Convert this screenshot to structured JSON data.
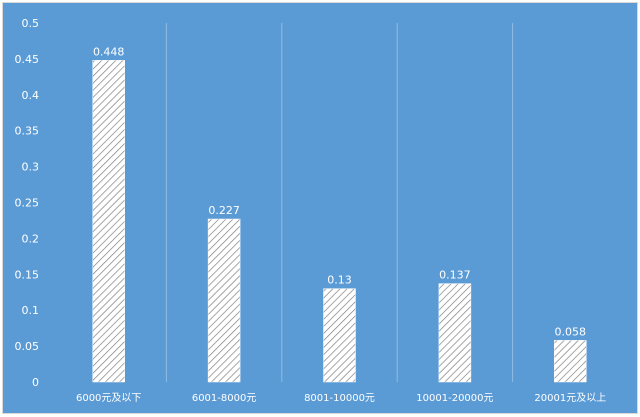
{
  "chart_data": {
    "type": "bar",
    "categories": [
      "6000元及以下",
      "6001-8000元",
      "8001-10000元",
      "10001-20000元",
      "20001元及以上"
    ],
    "series": [
      {
        "values": [
          0.448,
          0.227,
          0.13,
          0.137,
          0.058
        ]
      }
    ],
    "value_labels": [
      "0.448",
      "0.227",
      "0.13",
      "0.137",
      "0.058"
    ],
    "y_ticks": [
      "0",
      "0.05",
      "0.1",
      "0.15",
      "0.2",
      "0.25",
      "0.3",
      "0.35",
      "0.4",
      "0.45",
      "0.5"
    ],
    "ylim": [
      0,
      0.5
    ],
    "title": "",
    "xlabel": "",
    "ylabel": "",
    "grid": "vertical category separators",
    "legend": "none",
    "bar_fill": "diagonal-hatch",
    "colors": {
      "background": "#5b9bd5",
      "bar_fill": "#ffffff",
      "hatch": "#7f7f7f",
      "text": "#ffffff",
      "grid": "#8fbbe3"
    }
  }
}
